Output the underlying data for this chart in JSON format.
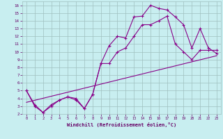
{
  "bg_color": "#c8eef0",
  "line_color": "#880088",
  "grid_color": "#9fbfbf",
  "xlabel": "Windchill (Refroidissement éolien,°C)",
  "xlabel_color": "#660066",
  "tick_color": "#660066",
  "xlim": [
    -0.5,
    23.5
  ],
  "ylim": [
    2,
    16.5
  ],
  "xticks": [
    0,
    1,
    2,
    3,
    4,
    5,
    6,
    7,
    8,
    9,
    10,
    11,
    12,
    13,
    14,
    15,
    16,
    17,
    18,
    19,
    20,
    21,
    22,
    23
  ],
  "yticks": [
    2,
    3,
    4,
    5,
    6,
    7,
    8,
    9,
    10,
    11,
    12,
    13,
    14,
    15,
    16
  ],
  "line1_x": [
    0,
    1,
    2,
    3,
    4,
    5,
    6,
    7,
    8,
    9,
    10,
    11,
    12,
    13,
    14,
    15,
    16,
    17,
    18,
    19,
    20,
    21,
    22,
    23
  ],
  "line1_y": [
    5.0,
    3.0,
    2.2,
    3.0,
    3.8,
    4.2,
    4.0,
    2.7,
    4.5,
    8.5,
    10.8,
    12.0,
    11.8,
    14.5,
    14.6,
    16.0,
    15.6,
    15.4,
    14.5,
    13.5,
    10.5,
    13.0,
    10.5,
    9.8
  ],
  "line2_x": [
    0,
    1,
    2,
    3,
    4,
    5,
    6,
    7,
    8,
    9,
    10,
    11,
    12,
    13,
    14,
    15,
    16,
    17,
    18,
    19,
    20,
    21,
    22,
    23
  ],
  "line2_y": [
    5.0,
    3.2,
    2.2,
    3.2,
    3.8,
    4.2,
    3.8,
    2.7,
    4.5,
    8.5,
    8.5,
    10.0,
    10.5,
    12.0,
    13.5,
    13.5,
    14.0,
    14.6,
    11.0,
    10.0,
    9.0,
    10.2,
    10.2,
    10.2
  ],
  "line3_x": [
    0,
    23
  ],
  "line3_y": [
    3.5,
    9.5
  ]
}
